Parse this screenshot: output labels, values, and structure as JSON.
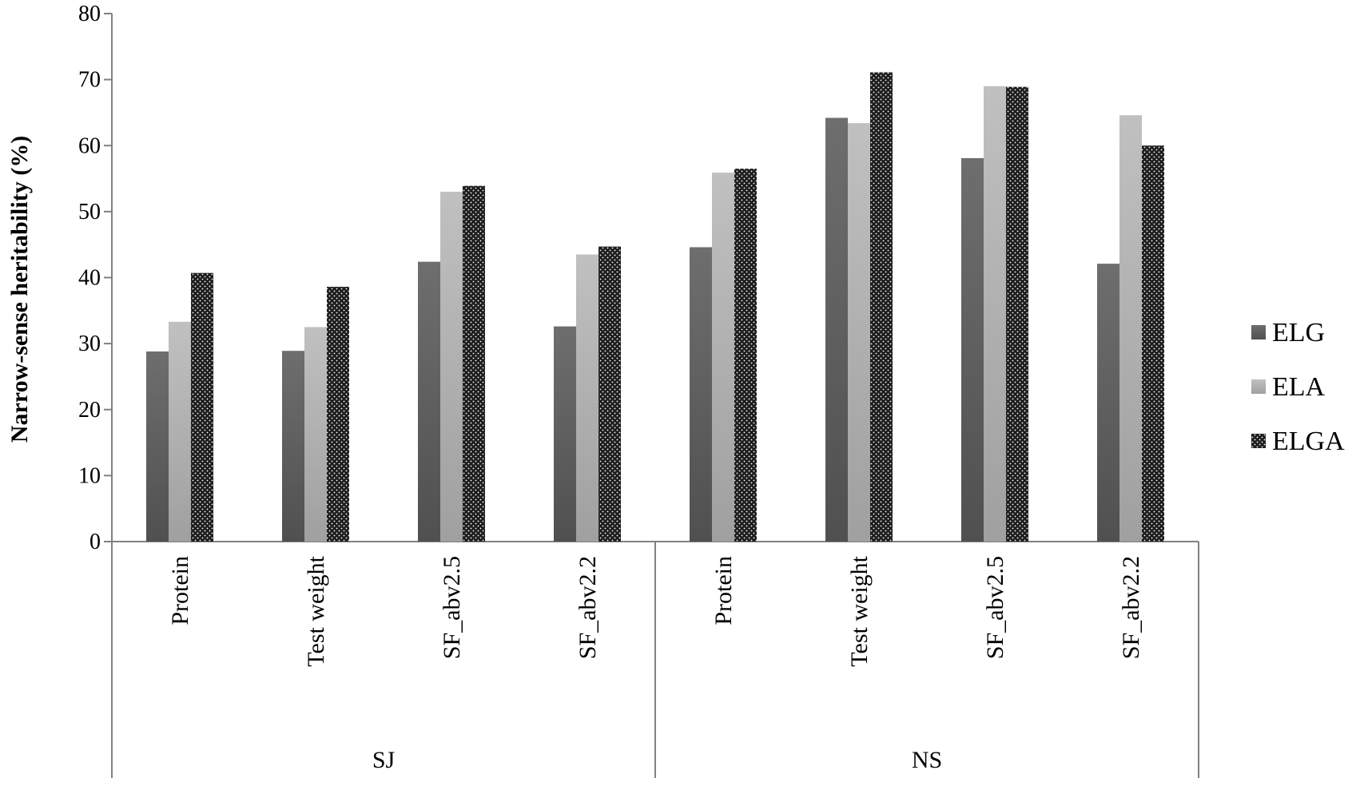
{
  "chart_data": {
    "type": "bar",
    "ylabel": "Narrow-sense heritability (%)",
    "ylim": [
      0,
      80
    ],
    "yticks": [
      0,
      10,
      20,
      30,
      40,
      50,
      60,
      70,
      80
    ],
    "groups": [
      {
        "name": "SJ",
        "categories": [
          "Protein",
          "Test weight",
          "SF_abv2.5",
          "SF_abv2.2"
        ]
      },
      {
        "name": "NS",
        "categories": [
          "Protein",
          "Test weight",
          "SF_abv2.5",
          "SF_abv2.2"
        ]
      }
    ],
    "categories": [
      "Protein",
      "Test weight",
      "SF_abv2.5",
      "SF_abv2.2",
      "Protein",
      "Test weight",
      "SF_abv2.5",
      "SF_abv2.2"
    ],
    "series": [
      {
        "name": "ELG",
        "values": [
          28.8,
          28.9,
          42.4,
          32.6,
          44.6,
          64.2,
          58.1,
          42.1
        ]
      },
      {
        "name": "ELA",
        "values": [
          33.3,
          32.5,
          53.0,
          43.5,
          55.9,
          63.4,
          69.0,
          64.6
        ]
      },
      {
        "name": "ELGA",
        "values": [
          40.7,
          38.6,
          53.9,
          44.7,
          56.5,
          71.1,
          68.9,
          60.0
        ]
      }
    ],
    "legend_position": "right",
    "grid": false,
    "colors": {
      "ELG": "#606060",
      "ELA": "#b0b0b0",
      "ELGA": "#1e1e1e"
    }
  }
}
